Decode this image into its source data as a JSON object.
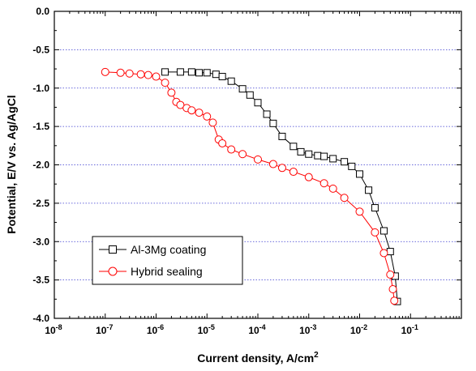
{
  "chart_data": {
    "type": "scatter",
    "xlabel": "Current density, A/cm",
    "xlabel_sup": "2",
    "ylabel": "Potential, E/V vs. Ag/AgCl",
    "xscale": "log",
    "xlim": [
      1e-08,
      1
    ],
    "ylim": [
      -4.0,
      0.0
    ],
    "x_ticks": [
      {
        "value": 1e-08,
        "base": "10",
        "exp": "-8"
      },
      {
        "value": 1e-07,
        "base": "10",
        "exp": "-7"
      },
      {
        "value": 1e-06,
        "base": "10",
        "exp": "-6"
      },
      {
        "value": 1e-05,
        "base": "10",
        "exp": "-5"
      },
      {
        "value": 0.0001,
        "base": "10",
        "exp": "-4"
      },
      {
        "value": 0.001,
        "base": "10",
        "exp": "-3"
      },
      {
        "value": 0.01,
        "base": "10",
        "exp": "-2"
      },
      {
        "value": 0.1,
        "base": "10",
        "exp": "-1"
      }
    ],
    "y_ticks": [
      "0.0",
      "-0.5",
      "-1.0",
      "-1.5",
      "-2.0",
      "-2.5",
      "-3.0",
      "-3.5",
      "-4.0"
    ],
    "grid": "horizontal dotted",
    "legend_position": "lower-left",
    "series": [
      {
        "name": "Al-3Mg coating",
        "color": "#000000",
        "marker": "square-open",
        "x": [
          1.5e-06,
          3e-06,
          5e-06,
          7e-06,
          1e-05,
          1.5e-05,
          2e-05,
          3e-05,
          5e-05,
          7e-05,
          0.0001,
          0.00015,
          0.0002,
          0.0003,
          0.0005,
          0.0007,
          0.001,
          0.0015,
          0.002,
          0.003,
          0.005,
          0.007,
          0.01,
          0.015,
          0.02,
          0.03,
          0.04,
          0.05,
          0.055
        ],
        "y": [
          -0.79,
          -0.79,
          -0.79,
          -0.8,
          -0.8,
          -0.82,
          -0.85,
          -0.91,
          -1.01,
          -1.09,
          -1.19,
          -1.34,
          -1.46,
          -1.63,
          -1.76,
          -1.83,
          -1.86,
          -1.88,
          -1.89,
          -1.92,
          -1.96,
          -2.02,
          -2.12,
          -2.33,
          -2.56,
          -2.86,
          -3.13,
          -3.45,
          -3.78
        ]
      },
      {
        "name": "Hybrid sealing",
        "color": "#ff0000",
        "marker": "circle-open",
        "x": [
          1e-07,
          2e-07,
          3e-07,
          5e-07,
          7e-07,
          1e-06,
          1.5e-06,
          2e-06,
          2.5e-06,
          3e-06,
          4e-06,
          5e-06,
          7e-06,
          1e-05,
          1.3e-05,
          1.7e-05,
          2e-05,
          3e-05,
          5e-05,
          0.0001,
          0.0002,
          0.0003,
          0.0005,
          0.001,
          0.002,
          0.003,
          0.005,
          0.01,
          0.02,
          0.03,
          0.04,
          0.045,
          0.048
        ],
        "y": [
          -0.79,
          -0.8,
          -0.81,
          -0.82,
          -0.83,
          -0.85,
          -0.93,
          -1.06,
          -1.18,
          -1.22,
          -1.26,
          -1.29,
          -1.32,
          -1.37,
          -1.45,
          -1.67,
          -1.72,
          -1.8,
          -1.86,
          -1.93,
          -1.99,
          -2.04,
          -2.09,
          -2.16,
          -2.24,
          -2.31,
          -2.43,
          -2.61,
          -2.88,
          -3.15,
          -3.43,
          -3.62,
          -3.77
        ]
      }
    ]
  }
}
